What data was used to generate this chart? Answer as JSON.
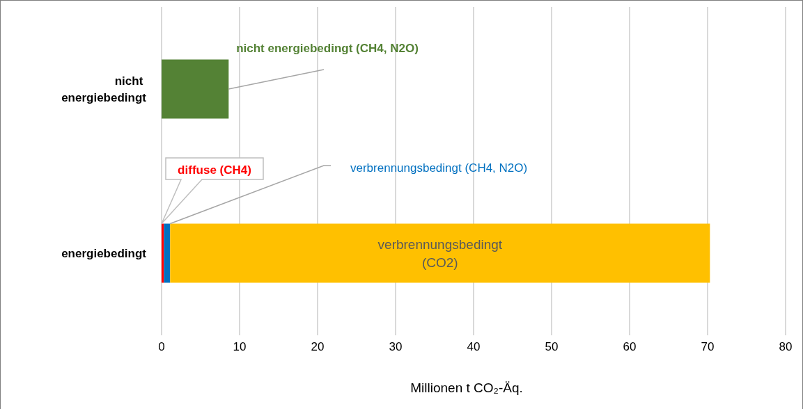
{
  "chart_data": {
    "type": "bar",
    "orientation": "horizontal",
    "stacked": true,
    "categories": [
      "nicht energiebedingt",
      "energiebedingt"
    ],
    "series": [
      {
        "name": "nicht energiebedingt (CH4, N2O)",
        "color": "#548235",
        "values": [
          8.6,
          null
        ]
      },
      {
        "name": "diffuse (CH4)",
        "color": "#ff0000",
        "values": [
          null,
          0.3
        ]
      },
      {
        "name": "verbrennungsbedingt (CH4, N2O)",
        "color": "#0070c0",
        "values": [
          null,
          0.8
        ]
      },
      {
        "name": "verbrennungsbedingt (CO2)",
        "color": "#ffc000",
        "values": [
          null,
          69.2
        ]
      }
    ],
    "xlim": [
      0,
      80
    ],
    "xticks": [
      0,
      10,
      20,
      30,
      40,
      50,
      60,
      70,
      80
    ],
    "xlabel": "Millionen t CO₂-Äq.",
    "grid": "x"
  }
}
